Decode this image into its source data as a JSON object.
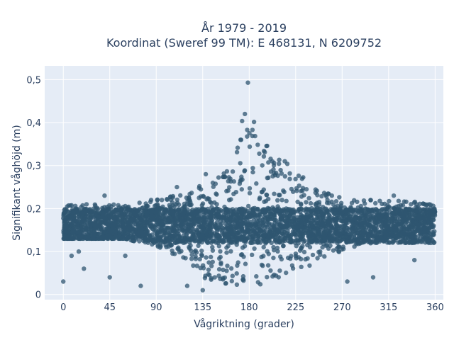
{
  "chart_data": {
    "type": "scatter",
    "title": "År 1979 - 2019",
    "subtitle": "Koordinat (Sweref 99 TM): E 468131, N 6209752",
    "xlabel": "Vågriktning (grader)",
    "ylabel": "Signifikant våghöjd (m)",
    "xlim": [
      -18,
      368
    ],
    "ylim": [
      -0.012,
      0.532
    ],
    "x_ticks": [
      0,
      45,
      90,
      135,
      180,
      225,
      270,
      315,
      360
    ],
    "x_tick_labels": [
      "0",
      "45",
      "90",
      "135",
      "180",
      "225",
      "270",
      "315",
      "360"
    ],
    "y_ticks": [
      0,
      0.1,
      0.2,
      0.3,
      0.4,
      0.5
    ],
    "y_tick_labels": [
      "0",
      "0,1",
      "0,2",
      "0,3",
      "0,4",
      "0,5"
    ],
    "grid": true,
    "legend": "none",
    "colors": {
      "marker": "#2f5570",
      "plot_bg": "#e5ecf6",
      "grid": "#ffffff",
      "text": "#2a3f5f"
    },
    "envelope_note_x": [
      0,
      30,
      60,
      90,
      120,
      140,
      160,
      170,
      175,
      180,
      185,
      190,
      200,
      210,
      225,
      240,
      260,
      280,
      300,
      330,
      360
    ],
    "series": [
      {
        "upper_envelope": [
          0.21,
          0.21,
          0.21,
          0.22,
          0.24,
          0.26,
          0.3,
          0.36,
          0.45,
          0.51,
          0.43,
          0.37,
          0.34,
          0.32,
          0.29,
          0.26,
          0.23,
          0.22,
          0.22,
          0.22,
          0.21
        ],
        "dense_lower": [
          0.13,
          0.13,
          0.13,
          0.11,
          0.08,
          0.03,
          0.02,
          0.02,
          0.02,
          0.02,
          0.02,
          0.02,
          0.03,
          0.04,
          0.05,
          0.06,
          0.09,
          0.11,
          0.12,
          0.12,
          0.12
        ],
        "sample_points": [
          [
            0,
            0.03
          ],
          [
            20,
            0.06
          ],
          [
            8,
            0.09
          ],
          [
            15,
            0.1
          ],
          [
            40,
            0.23
          ],
          [
            60,
            0.09
          ],
          [
            45,
            0.04
          ],
          [
            75,
            0.02
          ],
          [
            85,
            0.22
          ],
          [
            110,
            0.25
          ],
          [
            120,
            0.02
          ],
          [
            135,
            0.01
          ],
          [
            138,
            0.28
          ],
          [
            260,
            0.23
          ],
          [
            275,
            0.03
          ],
          [
            300,
            0.04
          ],
          [
            320,
            0.23
          ],
          [
            340,
            0.08
          ],
          [
            356,
            0.12
          ]
        ]
      }
    ]
  }
}
